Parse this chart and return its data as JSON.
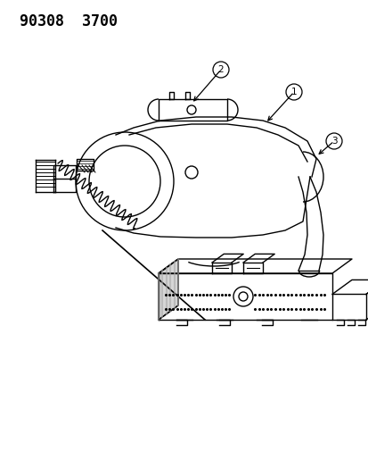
{
  "title_text": "90308  3700",
  "title_fontsize": 12,
  "bg_color": "#ffffff",
  "line_color": "#000000",
  "label1": "1",
  "label2": "2",
  "label3": "3"
}
